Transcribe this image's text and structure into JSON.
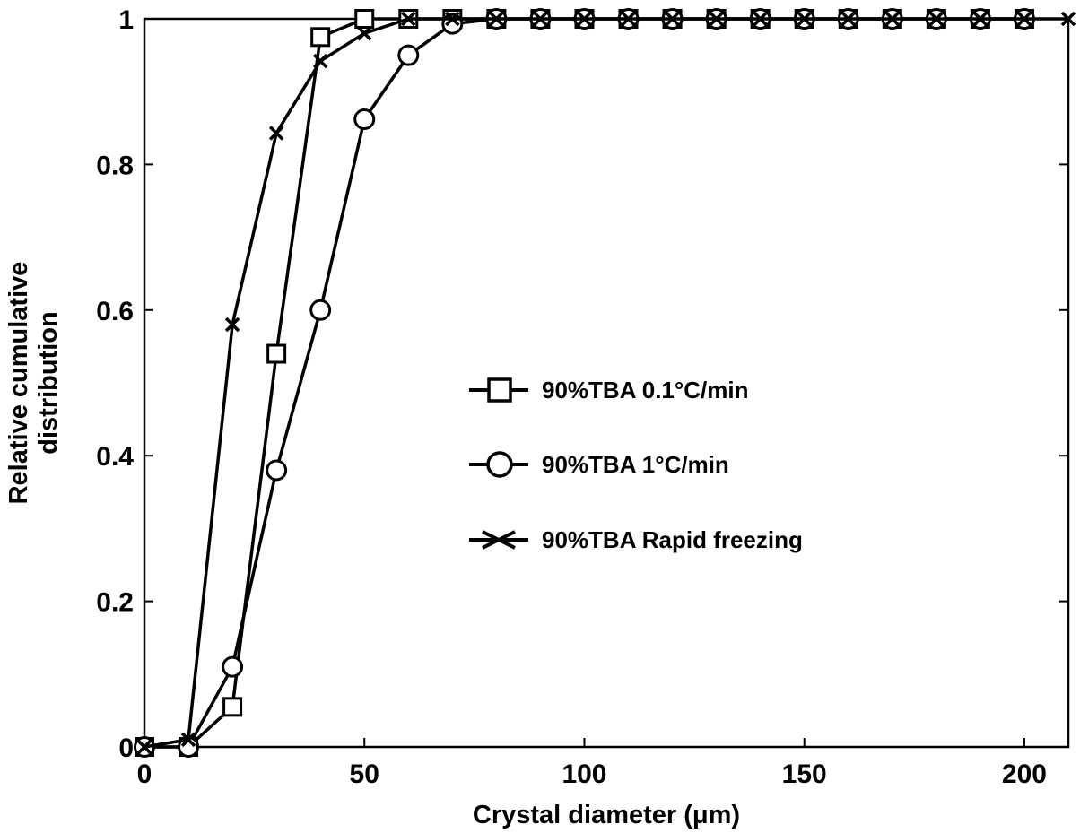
{
  "chart_data": {
    "type": "line",
    "xlabel": "Crystal diameter (μm)",
    "ylabel": "Relative cumulative distribution",
    "xlim": [
      0,
      210
    ],
    "ylim": [
      0,
      1
    ],
    "xticks": [
      0,
      50,
      100,
      150,
      200
    ],
    "yticks": [
      0,
      0.2,
      0.4,
      0.6,
      0.8,
      1
    ],
    "xtick_labels": [
      "0",
      "50",
      "100",
      "150",
      "200"
    ],
    "ytick_labels": [
      "0",
      "0.2",
      "0.4",
      "0.6",
      "0.8",
      "1"
    ],
    "grid": false,
    "legend_position": "center-right",
    "x": [
      0,
      10,
      20,
      30,
      40,
      50,
      60,
      70,
      80,
      90,
      100,
      110,
      120,
      130,
      140,
      150,
      160,
      170,
      180,
      190,
      200,
      210
    ],
    "series": [
      {
        "name": "90%TBA  0.1°C/min",
        "marker": "square",
        "values": [
          0,
          0,
          0.055,
          0.54,
          0.975,
          1,
          1,
          1,
          1,
          1,
          1,
          1,
          1,
          1,
          1,
          1,
          1,
          1,
          1,
          1,
          1,
          null
        ]
      },
      {
        "name": "90%TBA  1°C/min",
        "marker": "circle",
        "values": [
          0,
          0,
          0.11,
          0.38,
          0.6,
          0.862,
          0.95,
          0.993,
          1,
          1,
          1,
          1,
          1,
          1,
          1,
          1,
          1,
          1,
          1,
          1,
          1,
          null
        ]
      },
      {
        "name": "90%TBA  Rapid freezing",
        "marker": "x",
        "values": [
          0,
          0.01,
          0.58,
          0.843,
          0.942,
          0.98,
          1,
          1,
          1,
          1,
          1,
          1,
          1,
          1,
          1,
          1,
          1,
          1,
          1,
          1,
          1,
          1
        ]
      }
    ],
    "colors": {
      "line": "#000000",
      "background": "#ffffff"
    }
  }
}
